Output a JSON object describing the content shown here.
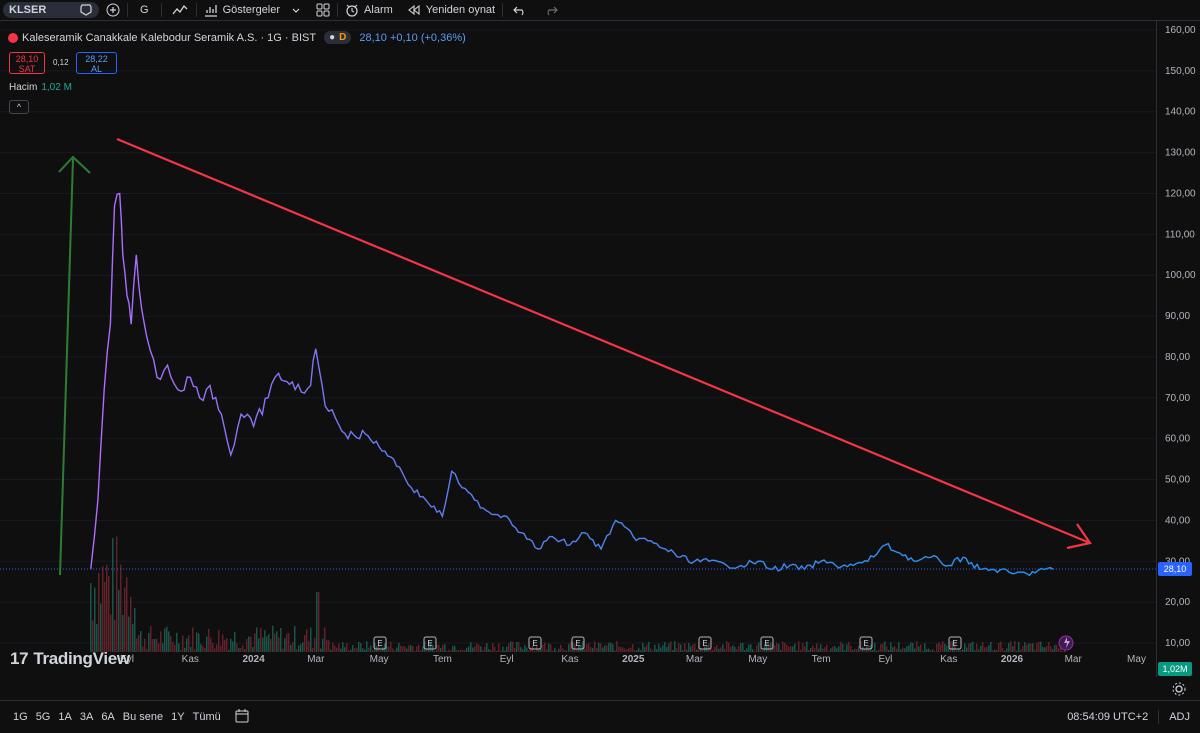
{
  "toolbar": {
    "symbol": "KLSER",
    "interval": "G",
    "indicators_label": "Göstergeler",
    "alarm_label": "Alarm",
    "replay_label": "Yeniden oynat"
  },
  "legend": {
    "name": "Kaleseramik Canakkale Kalebodur Seramik A.S. · 1G · BIST",
    "badge": "D",
    "price_text": "28,10 +0,10 (+0,36%)"
  },
  "trade": {
    "sell_price": "28,10",
    "sell_label": "SAT",
    "spread": "0,12",
    "buy_price": "28,22",
    "buy_label": "AL"
  },
  "volume": {
    "label": "Hacim",
    "value": "1,02 M",
    "axis_tag": "1,02M"
  },
  "logo_text": "TradingView",
  "price_tag": "28,10",
  "bottom": {
    "ranges": [
      "1G",
      "5G",
      "1A",
      "3A",
      "6A",
      "Bu sene",
      "1Y",
      "Tümü"
    ],
    "time": "08:54:09 UTC+2",
    "adj": "ADJ"
  },
  "colors": {
    "up_arrow": "#2e7d32",
    "trend_line": "#f23645",
    "price_line_start": "#b36bff",
    "price_line_end": "#2196f3",
    "last_price": "#2962ff"
  },
  "icons": [
    "favorite-icon",
    "plus-icon",
    "compare-icon",
    "indicators-icon",
    "chevron-down-icon",
    "layout-grid-icon",
    "alarm-icon",
    "replay-icon",
    "undo-icon",
    "redo-icon",
    "settings-icon",
    "calendar-icon",
    "earnings-icon",
    "dividend-icon"
  ],
  "chart_data": {
    "type": "line",
    "y_axis_ticks": [
      "160,00",
      "150,00",
      "140,00",
      "130,00",
      "120,00",
      "110,00",
      "100,00",
      "90,00",
      "80,00",
      "70,00",
      "60,00",
      "50,00",
      "40,00",
      "30,00",
      "20,00",
      "10,00"
    ],
    "x_axis_ticks": [
      "Eyl",
      "Kas",
      "2024",
      "Mar",
      "May",
      "Tem",
      "Eyl",
      "Kas",
      "2025",
      "Mar",
      "May",
      "Tem",
      "Eyl",
      "Kas",
      "2026",
      "Mar",
      "May"
    ],
    "ylim": [
      0,
      160
    ],
    "series": [
      {
        "x": [
          "2023-07-28",
          "2023-08-04",
          "2023-08-10",
          "2023-08-16",
          "2023-08-20",
          "2023-08-25",
          "2023-08-28",
          "2023-09-01",
          "2023-09-05",
          "2023-09-10",
          "2023-09-15",
          "2023-09-20",
          "2023-09-30",
          "2023-10-10",
          "2023-10-20",
          "2023-11-01",
          "2023-11-10",
          "2023-11-20",
          "2023-12-01",
          "2023-12-10",
          "2023-12-20",
          "2024-01-01",
          "2024-01-15",
          "2024-01-25",
          "2024-02-10",
          "2024-02-25",
          "2024-03-01",
          "2024-03-10",
          "2024-03-20",
          "2024-04-01",
          "2024-04-15",
          "2024-05-01",
          "2024-05-15",
          "2024-06-01",
          "2024-06-15",
          "2024-07-01",
          "2024-07-10",
          "2024-07-20",
          "2024-08-01",
          "2024-08-15",
          "2024-09-01",
          "2024-09-15",
          "2024-10-01",
          "2024-10-15",
          "2024-11-01",
          "2024-11-15",
          "2024-12-01",
          "2024-12-15",
          "2025-01-01",
          "2025-01-15",
          "2025-02-01",
          "2025-02-15",
          "2025-03-01",
          "2025-03-15",
          "2025-04-01",
          "2025-04-15",
          "2025-05-01",
          "2025-05-15",
          "2025-06-01",
          "2025-06-15",
          "2025-07-01",
          "2025-07-15",
          "2025-08-01",
          "2025-08-15",
          "2025-09-01",
          "2025-09-15",
          "2025-10-01",
          "2025-10-15",
          "2025-11-01",
          "2025-11-15",
          "2025-12-01",
          "2025-12-15",
          "2026-01-01",
          "2026-01-15",
          "2026-02-01",
          "2026-02-10"
        ],
        "y": [
          28,
          45,
          72,
          88,
          117,
          120,
          105,
          95,
          88,
          105,
          92,
          85,
          75,
          78,
          72,
          75,
          70,
          73,
          66,
          56,
          66,
          63,
          70,
          76,
          72,
          73,
          82,
          68,
          65,
          60,
          62,
          58,
          55,
          48,
          45,
          41,
          52,
          48,
          45,
          42,
          41,
          37,
          33,
          36,
          34,
          37,
          33,
          40,
          36,
          35,
          33,
          31,
          30,
          30,
          29,
          29,
          30,
          28,
          29,
          28,
          30,
          29,
          29,
          30,
          34,
          32,
          30,
          31,
          29,
          31,
          28,
          28,
          27,
          27,
          28,
          28
        ]
      }
    ]
  }
}
